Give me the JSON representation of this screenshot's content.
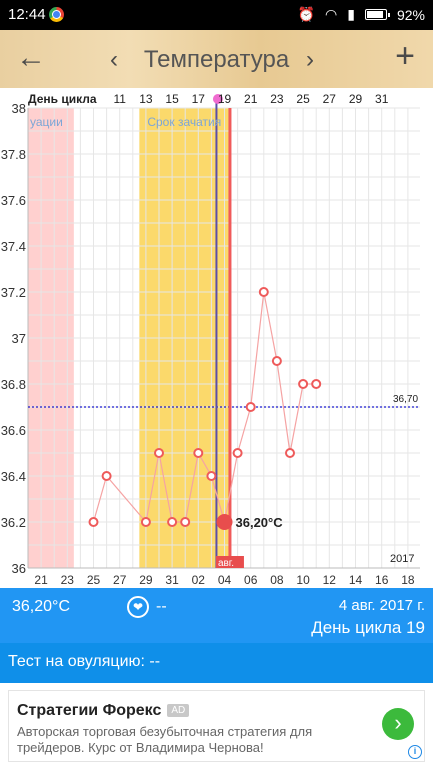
{
  "status_bar": {
    "time": "12:44",
    "battery": "92%"
  },
  "toolbar": {
    "back_icon": "←",
    "prev_icon": "‹",
    "title": "Температура",
    "next_icon": "›",
    "add_icon": "+"
  },
  "chart_data": {
    "type": "line",
    "header_label": "День цикла",
    "cycle_day_labels": [
      "11",
      "13",
      "15",
      "17",
      "19",
      "21",
      "23",
      "25",
      "27",
      "29",
      "31"
    ],
    "date_labels": [
      "21",
      "23",
      "25",
      "27",
      "29",
      "31",
      "02",
      "04",
      "06",
      "08",
      "10",
      "12",
      "14",
      "16",
      "18"
    ],
    "year_label": "2017",
    "y_ticks": [
      "38",
      "37.8",
      "37.6",
      "37.4",
      "37.2",
      "37",
      "36.8",
      "36.6",
      "36.4",
      "36.2",
      "36"
    ],
    "ylim": [
      36,
      38
    ],
    "points": [
      {
        "d": 25,
        "t": 36.2
      },
      {
        "d": 26,
        "t": 36.4
      },
      {
        "d": 29,
        "t": 36.2
      },
      {
        "d": 30,
        "t": 36.5
      },
      {
        "d": 31,
        "t": 36.2
      },
      {
        "d": 32,
        "t": 36.2
      },
      {
        "d": 33,
        "t": 36.5
      },
      {
        "d": 34,
        "t": 36.4
      },
      {
        "d": 35,
        "t": 36.2
      },
      {
        "d": 36,
        "t": 36.5
      },
      {
        "d": 37,
        "t": 36.7
      },
      {
        "d": 38,
        "t": 37.2
      },
      {
        "d": 39,
        "t": 36.9
      },
      {
        "d": 40,
        "t": 36.5
      },
      {
        "d": 41,
        "t": 36.8
      },
      {
        "d": 42,
        "t": 36.8
      }
    ],
    "selected_point": {
      "d": 35,
      "t": 36.2,
      "label": "36,20°C"
    },
    "coverline": {
      "t": 36.7,
      "label": "36,70"
    },
    "menstruation_band": {
      "from": 20,
      "to": 23.5,
      "label": "уации"
    },
    "fertile_band": {
      "from": 28.5,
      "to": 35.5,
      "label": "Срок зачатия"
    },
    "ovulation_day": 34.5,
    "today_marker_label": "авг."
  },
  "info_bar": {
    "temperature": "36,20°C",
    "heart_icon": "❤",
    "note": "--",
    "date": "4 авг. 2017 г.",
    "cycle_day": "День цикла 19"
  },
  "ovulation_test": {
    "text": "Тест на овуляцию: --"
  },
  "ad": {
    "title": "Стратегии Форекс",
    "badge": "AD",
    "description": "Авторская торговая безубыточная стратегия для трейдеров. Курс от Владимира Чернова!",
    "arrow_icon": "›",
    "info_icon": "i",
    "colors": {
      "go_button": "#3cba3c"
    }
  },
  "colors": {
    "accent": "#2196f3",
    "menstruation": "#ffd0cf",
    "fertile": "#fbd96b",
    "ovulation_line": "#5b4ea8",
    "today_line": "#f05a5a",
    "data_line": "#f5a3a3",
    "coverline": "#1c1ccf"
  }
}
